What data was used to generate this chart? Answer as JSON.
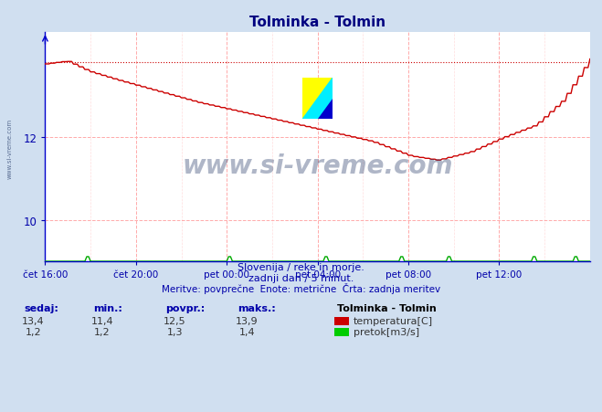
{
  "title": "Tolminka - Tolmin",
  "title_color": "#000080",
  "bg_color": "#d0dff0",
  "plot_bg_color": "#ffffff",
  "grid_color_major": "#ffaaaa",
  "grid_color_minor": "#ffdddd",
  "x_tick_labels": [
    "čet 16:00",
    "čet 20:00",
    "pet 00:00",
    "pet 04:00",
    "pet 08:00",
    "pet 12:00"
  ],
  "x_tick_positions": [
    0,
    48,
    96,
    144,
    192,
    240
  ],
  "n_points": 289,
  "ylim_min": 9.0,
  "ylim_max": 14.55,
  "yticks": [
    10,
    12
  ],
  "temp_line_color": "#cc0000",
  "flow_line_color": "#00aa00",
  "avg_line_color": "#cc0000",
  "axis_color": "#0000cc",
  "tick_color": "#0000aa",
  "watermark_text": "www.si-vreme.com",
  "watermark_color": "#1a3060",
  "watermark_alpha": 0.35,
  "sidebar_text": "www.si-vreme.com",
  "subtitle1": "Slovenija / reke in morje.",
  "subtitle2": "zadnji dan / 5 minut.",
  "subtitle3": "Meritve: povprečne  Enote: metrične  Črta: zadnja meritev",
  "subtitle_color": "#0000aa",
  "legend_title": "Tolminka - Tolmin",
  "legend_entries": [
    "temperatura[C]",
    "pretok[m3/s]"
  ],
  "legend_colors": [
    "#cc0000",
    "#00cc00"
  ],
  "stats_headers": [
    "sedaj:",
    "min.:",
    "povpr.:",
    "maks.:"
  ],
  "stats_temp": [
    "13,4",
    "11,4",
    "12,5",
    "13,9"
  ],
  "stats_flow": [
    "1,2",
    "1,2",
    "1,3",
    "1,4"
  ],
  "stats_color": "#0000aa",
  "avg_dotted_y": 13.82
}
